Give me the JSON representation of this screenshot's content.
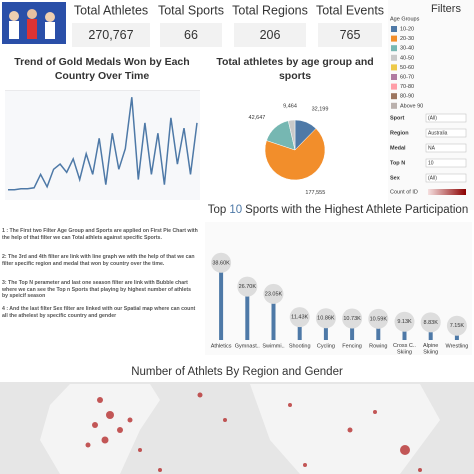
{
  "kpis": [
    {
      "label": "Total Athletes",
      "value": "270,767"
    },
    {
      "label": "Total Sports",
      "value": "66"
    },
    {
      "label": "Total Regions",
      "value": "206"
    },
    {
      "label": "Total Events",
      "value": "765"
    }
  ],
  "filters": {
    "title": "Filters",
    "controls": [
      {
        "label": "Sport",
        "value": "(All)"
      },
      {
        "label": "Region",
        "value": "Australia"
      },
      {
        "label": "Medal",
        "value": "NA"
      },
      {
        "label": "Top N",
        "value": "10"
      },
      {
        "label": "Sex",
        "value": "(All)"
      }
    ],
    "color_legend": "Count of ID"
  },
  "notes": [
    "1 : The First two Filter Age Group and Sports are applied on First Pie Chart with the help of that filter we can Total athlets against specific Sports.",
    "2: The 3rd and 4th filter are link with line graph we with the help of that we can filter specific region and medal that won by country over the time.",
    "3: The Top N perameter and last one season filter are link with Bubble chart where we can see the Top n Sports that playing by highest number of athlets by speicif season",
    "4 : And the last filter Sex filter are linked with our Spatial map where can count all the athelest by specific country and gender"
  ],
  "chart_data": [
    {
      "type": "line",
      "title": "Trend of Gold Medals Won by Each Country Over Time",
      "color": "#4e79a7",
      "values": [
        5,
        5,
        6,
        6,
        7,
        20,
        8,
        25,
        30,
        22,
        35,
        15,
        40,
        20,
        55,
        10,
        60,
        25,
        45,
        95,
        15,
        70,
        20,
        60,
        10,
        75,
        30,
        65,
        20,
        70
      ],
      "ylim": [
        0,
        100
      ]
    },
    {
      "type": "pie",
      "title": "Total athletes  by age group and sports",
      "legend_title": "Age Groups",
      "categories": [
        "10-20",
        "20-30",
        "30-40",
        "40-50",
        "50-60",
        "60-70",
        "70-80",
        "80-90",
        "Above 90"
      ],
      "colors": [
        "#4e79a7",
        "#f28e2b",
        "#76b7b2",
        "#c9c9c9",
        "#edc948",
        "#b07aa1",
        "#ff9da7",
        "#9c755f",
        "#bab0ac"
      ],
      "values": [
        32199,
        177555,
        42647,
        9464,
        null,
        null,
        null,
        null,
        null
      ],
      "value_labels": [
        "32,199",
        "177,555",
        "42,647",
        "9,464",
        null,
        null,
        null,
        null,
        null
      ]
    },
    {
      "type": "bar",
      "title_prefix": "Top",
      "title_highlight": "10",
      "title_suffix": "Sports with the Highest Athlete Participation",
      "color": "#4e79a7",
      "categories": [
        "Athletics",
        "Gymnast..",
        "Swimmi..",
        "Shooting",
        "Cycling",
        "Fencing",
        "Rowing",
        "Cross C.. Skiing",
        "Alpine Skiing",
        "Wrestling"
      ],
      "values": [
        38600,
        26700,
        23050,
        11430,
        10860,
        10730,
        10590,
        9130,
        8830,
        7150
      ],
      "value_labels": [
        "38.60K",
        "26.70K",
        "23.05K",
        "11.43K",
        "10.86K",
        "10.73K",
        "10.59K",
        "9.13K",
        "8.83K",
        "7.15K"
      ],
      "ylim": [
        0,
        40000
      ]
    },
    {
      "type": "map",
      "title": "Number of Athlets By Region and Gender"
    }
  ]
}
